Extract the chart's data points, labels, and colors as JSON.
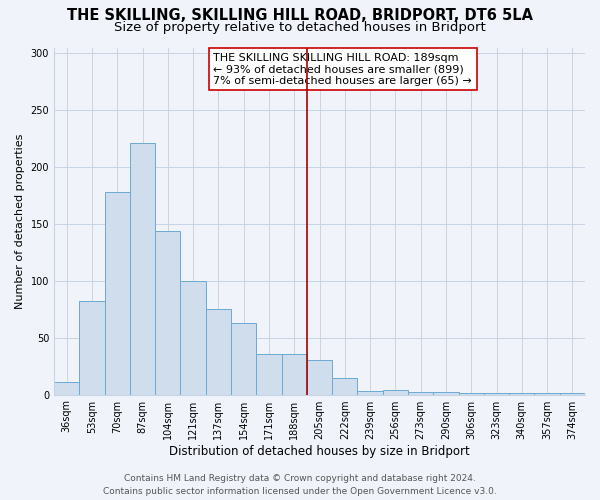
{
  "title": "THE SKILLING, SKILLING HILL ROAD, BRIDPORT, DT6 5LA",
  "subtitle": "Size of property relative to detached houses in Bridport",
  "xlabel": "Distribution of detached houses by size in Bridport",
  "ylabel": "Number of detached properties",
  "bar_labels": [
    "36sqm",
    "53sqm",
    "70sqm",
    "87sqm",
    "104sqm",
    "121sqm",
    "137sqm",
    "154sqm",
    "171sqm",
    "188sqm",
    "205sqm",
    "222sqm",
    "239sqm",
    "256sqm",
    "273sqm",
    "290sqm",
    "306sqm",
    "323sqm",
    "340sqm",
    "357sqm",
    "374sqm"
  ],
  "bar_values": [
    11,
    82,
    178,
    221,
    144,
    100,
    75,
    63,
    36,
    36,
    30,
    15,
    3,
    4,
    2,
    2,
    1,
    1,
    1,
    1,
    1
  ],
  "bar_color": "#cfdded",
  "bar_edge_color": "#6aaad4",
  "vline_x": 9.5,
  "vline_color": "#aa0000",
  "annotation_line1": "THE SKILLING SKILLING HILL ROAD: 189sqm",
  "annotation_line2": "← 93% of detached houses are smaller (899)",
  "annotation_line3": "7% of semi-detached houses are larger (65) →",
  "ylim": [
    0,
    305
  ],
  "yticks": [
    0,
    50,
    100,
    150,
    200,
    250,
    300
  ],
  "footer_line1": "Contains HM Land Registry data © Crown copyright and database right 2024.",
  "footer_line2": "Contains public sector information licensed under the Open Government Licence v3.0.",
  "title_fontsize": 10.5,
  "subtitle_fontsize": 9.5,
  "xlabel_fontsize": 8.5,
  "ylabel_fontsize": 8,
  "tick_fontsize": 7,
  "annotation_fontsize": 8,
  "footer_fontsize": 6.5,
  "background_color": "#f0f4fa",
  "grid_color": "#c8d4e4"
}
